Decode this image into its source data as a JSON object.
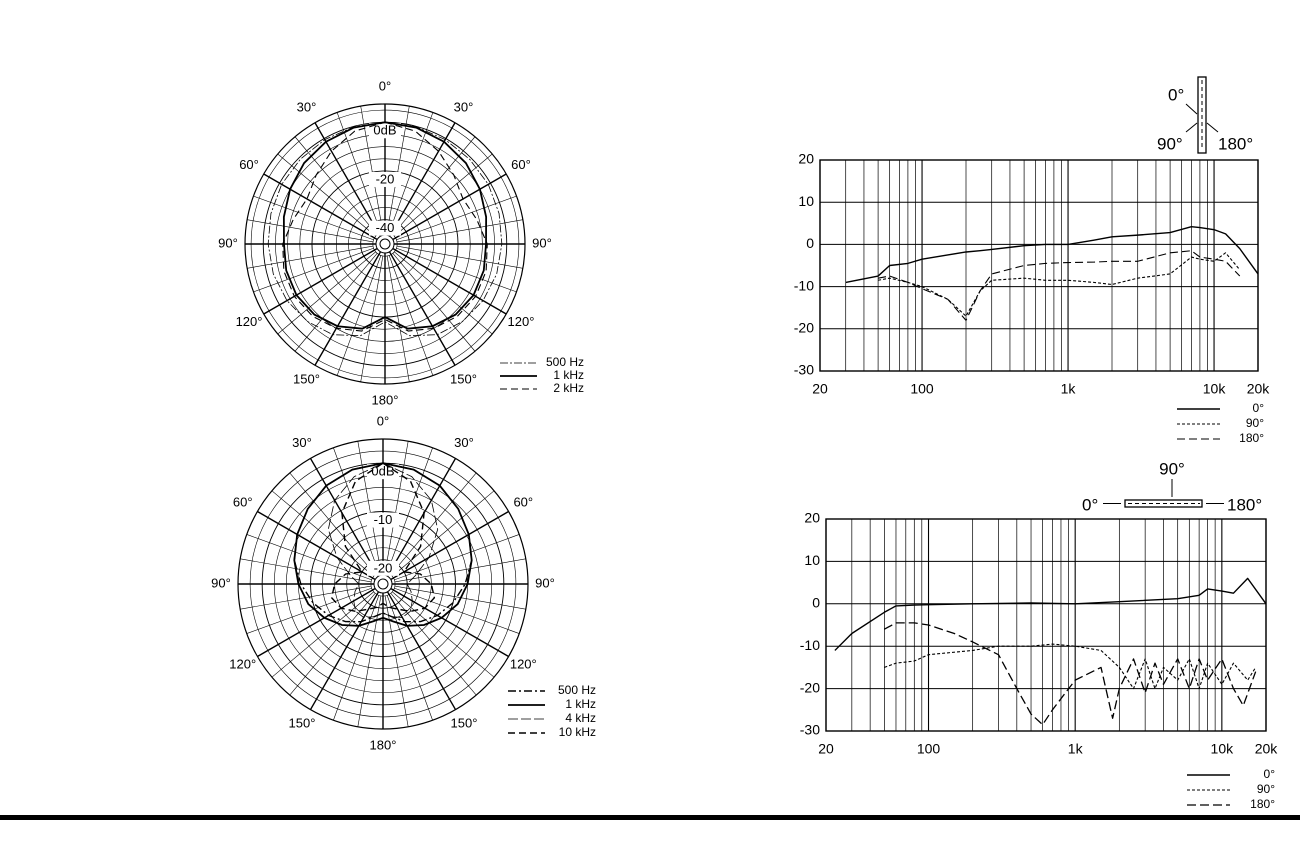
{
  "chart_data": [
    {
      "type": "polar",
      "rlim": [
        -50,
        7.5
      ],
      "rticks": [
        {
          "value": 0,
          "label": "0dB"
        },
        -20,
        -40
      ],
      "rgrid": [
        -45,
        -35,
        -30,
        -25,
        -15,
        -10,
        -5,
        5
      ],
      "angle_ticks": [
        {
          "value": 0,
          "label": "0°"
        },
        {
          "value": 30,
          "label": "30°"
        },
        {
          "value": 60,
          "label": "60°"
        },
        {
          "value": 90,
          "label": "90°"
        },
        {
          "value": 120,
          "label": "120°"
        },
        {
          "value": 150,
          "label": "150°"
        },
        {
          "value": 180,
          "label": "180°"
        },
        {
          "value": 210,
          "label": "150°"
        },
        {
          "value": 240,
          "label": "120°"
        },
        {
          "value": 270,
          "label": "90°"
        },
        {
          "value": 300,
          "label": "60°"
        },
        {
          "value": 330,
          "label": "30°"
        }
      ],
      "agrid": [
        10,
        20,
        40,
        50,
        70,
        80,
        100,
        110,
        130,
        140,
        160,
        170,
        190,
        200,
        220,
        230,
        250,
        260,
        280,
        290,
        310,
        320,
        340,
        350
      ],
      "angles": [
        0,
        15,
        30,
        45,
        60,
        75,
        90,
        105,
        120,
        135,
        150,
        165,
        180,
        195,
        210,
        225,
        240,
        255,
        270,
        285,
        300,
        315,
        330,
        345
      ],
      "series": [
        {
          "name": "500 Hz",
          "color": "#000",
          "dash": "8 2 2 2",
          "width": 0.8,
          "values": [
            0,
            -0.2,
            -0.5,
            -0.8,
            -1,
            -1.5,
            -2,
            -2.5,
            -3.5,
            -5,
            -7,
            -11,
            -18,
            -11,
            -7,
            -5,
            -3.5,
            -2.5,
            -2,
            -1.5,
            -1,
            -0.8,
            -0.5,
            -0.2
          ]
        },
        {
          "name": "1 kHz",
          "color": "#000",
          "width": 1.8,
          "values": [
            0,
            -0.5,
            -1.5,
            -3,
            -5,
            -7,
            -8.5,
            -8,
            -8,
            -9,
            -11,
            -14,
            -20,
            -14,
            -11,
            -9,
            -8,
            -8,
            -8.5,
            -7,
            -5,
            -3,
            -1.5,
            -0.5
          ]
        },
        {
          "name": "2 kHz",
          "color": "#000",
          "dash": "7 4",
          "width": 1.1,
          "values": [
            0,
            -2,
            -6,
            -10,
            -13,
            -11,
            -8,
            -7,
            -7,
            -8,
            -10,
            -13,
            -19,
            -13,
            -10,
            -8,
            -7,
            -7,
            -8,
            -11,
            -13,
            -10,
            -6,
            -2
          ]
        }
      ]
    },
    {
      "type": "polar",
      "rlim": [
        -25,
        5
      ],
      "rticks": [
        {
          "value": 0,
          "label": "0dB"
        },
        -10,
        -20
      ],
      "rgrid": [
        -22.5,
        -17.5,
        -15,
        -12.5,
        -7.5,
        -5,
        -2.5,
        2.5
      ],
      "angle_ticks": [
        {
          "value": 0,
          "label": "0°"
        },
        {
          "value": 30,
          "label": "30°"
        },
        {
          "value": 60,
          "label": "60°"
        },
        {
          "value": 90,
          "label": "90°"
        },
        {
          "value": 120,
          "label": "120°"
        },
        {
          "value": 150,
          "label": "150°"
        },
        {
          "value": 180,
          "label": "180°"
        },
        {
          "value": 210,
          "label": "150°"
        },
        {
          "value": 240,
          "label": "120°"
        },
        {
          "value": 270,
          "label": "90°"
        },
        {
          "value": 300,
          "label": "60°"
        },
        {
          "value": 330,
          "label": "30°"
        }
      ],
      "agrid": [
        10,
        20,
        40,
        50,
        70,
        80,
        100,
        110,
        130,
        140,
        160,
        170,
        190,
        200,
        220,
        230,
        250,
        260,
        280,
        290,
        310,
        320,
        340,
        350
      ],
      "angles": [
        0,
        15,
        30,
        45,
        60,
        75,
        90,
        105,
        120,
        135,
        150,
        165,
        180,
        195,
        210,
        225,
        240,
        255,
        270,
        285,
        300,
        315,
        330,
        345
      ],
      "series": [
        {
          "name": "500 Hz",
          "color": "#000",
          "dash": "8 3 2 3",
          "width": 1.4,
          "values": [
            0,
            -0.5,
            -1.5,
            -3,
            -4.5,
            -6,
            -8,
            -10,
            -12,
            -14,
            -16,
            -18,
            -19,
            -18,
            -16,
            -14,
            -12,
            -10,
            -8,
            -6,
            -4.5,
            -3,
            -1.5,
            -0.5
          ]
        },
        {
          "name": "1 kHz",
          "color": "#000",
          "width": 1.8,
          "values": [
            0,
            -0.5,
            -1.5,
            -3,
            -4.5,
            -6,
            -7.5,
            -9,
            -11,
            -13,
            -15,
            -17,
            -18,
            -17,
            -15,
            -13,
            -11,
            -9,
            -7.5,
            -6,
            -4.5,
            -3,
            -1.5,
            -0.5
          ]
        },
        {
          "name": "4 kHz",
          "color": "#000",
          "dash": "10 3",
          "width": 0.8,
          "values": [
            0,
            -2,
            -5,
            -9,
            -14,
            -18,
            -20,
            -19,
            -18,
            -17,
            -17,
            -18,
            -19,
            -18,
            -17,
            -17,
            -18,
            -19,
            -20,
            -18,
            -14,
            -9,
            -5,
            -2
          ]
        },
        {
          "name": "10 kHz",
          "color": "#000",
          "dash": "7 4",
          "width": 1.4,
          "values": [
            0,
            -3,
            -8,
            -14,
            -20,
            -17,
            -15,
            -14,
            -15,
            -17,
            -19,
            -20,
            -21,
            -20,
            -19,
            -17,
            -15,
            -14,
            -15,
            -17,
            -20,
            -14,
            -8,
            -3
          ]
        }
      ]
    },
    {
      "type": "line",
      "xlog": true,
      "xlim": [
        20,
        20000
      ],
      "ylim": [
        -30,
        20
      ],
      "xticks": [
        20,
        100,
        {
          "value": 1000,
          "label": "1k"
        },
        {
          "value": 10000,
          "label": "10k"
        },
        {
          "value": 20000,
          "label": "20k"
        }
      ],
      "xminor_ticks": [
        30,
        40,
        50,
        60,
        70,
        80,
        90,
        200,
        300,
        400,
        500,
        600,
        700,
        800,
        900,
        2000,
        3000,
        4000,
        5000,
        6000,
        7000,
        8000,
        9000
      ],
      "yticks": [
        -30,
        -20,
        -10,
        0,
        10,
        20
      ],
      "grid": true,
      "annotations": [
        "0°",
        "90°",
        "180°"
      ],
      "series": [
        {
          "name": "0°",
          "color": "#000",
          "width": 1.4,
          "x": [
            30,
            50,
            60,
            80,
            100,
            150,
            200,
            250,
            300,
            500,
            700,
            1000,
            1500,
            2000,
            3000,
            5000,
            7000,
            8000,
            10000,
            12000,
            15000,
            20000
          ],
          "values": [
            -9,
            -7.5,
            -5,
            -4.5,
            -3.5,
            -2.5,
            -1.8,
            -1.5,
            -1.2,
            -0.3,
            0,
            0,
            1,
            1.8,
            2.2,
            2.8,
            4.2,
            4,
            3.5,
            2.5,
            -1,
            -7
          ]
        },
        {
          "name": "90°",
          "color": "#000",
          "dash": "3 2",
          "width": 1.1,
          "x": [
            50,
            60,
            80,
            100,
            150,
            200,
            250,
            300,
            500,
            700,
            1000,
            1500,
            2000,
            3000,
            5000,
            7000,
            8000,
            10000,
            12000,
            15000
          ],
          "values": [
            -8.5,
            -8,
            -9,
            -10,
            -13,
            -17,
            -11,
            -8.5,
            -8,
            -8.5,
            -8.5,
            -9,
            -9.5,
            -8,
            -7,
            -3,
            -3.5,
            -4,
            -2,
            -6
          ]
        },
        {
          "name": "180°",
          "color": "#000",
          "dash": "8 4",
          "width": 1.1,
          "x": [
            50,
            60,
            80,
            100,
            150,
            200,
            250,
            300,
            500,
            700,
            1000,
            1500,
            2000,
            3000,
            5000,
            7000,
            8000,
            10000,
            12000,
            15000
          ],
          "values": [
            -8,
            -7.5,
            -9,
            -10.5,
            -13,
            -18,
            -11,
            -7,
            -5,
            -4.5,
            -4.3,
            -4.2,
            -4,
            -4,
            -2,
            -1.5,
            -3,
            -3.5,
            -4,
            -7.5
          ]
        }
      ]
    },
    {
      "type": "line",
      "xlog": true,
      "xlim": [
        20,
        20000
      ],
      "ylim": [
        -30,
        20
      ],
      "xticks": [
        20,
        100,
        {
          "value": 1000,
          "label": "1k"
        },
        {
          "value": 10000,
          "label": "10k"
        },
        {
          "value": 20000,
          "label": "20k"
        }
      ],
      "xminor_ticks": [
        30,
        40,
        50,
        60,
        70,
        80,
        90,
        200,
        300,
        400,
        500,
        600,
        700,
        800,
        900,
        2000,
        3000,
        4000,
        5000,
        6000,
        7000,
        8000,
        9000
      ],
      "yticks": [
        -30,
        -20,
        -10,
        0,
        10,
        20
      ],
      "grid": true,
      "annotations": [
        "90°",
        "0°",
        "180°"
      ],
      "series": [
        {
          "name": "0°",
          "color": "#000",
          "width": 1.4,
          "x": [
            23,
            30,
            50,
            60,
            80,
            100,
            200,
            500,
            1000,
            2000,
            5000,
            7000,
            8000,
            10000,
            12000,
            15000,
            20000
          ],
          "values": [
            -11,
            -7,
            -2,
            -0.5,
            -0.3,
            -0.2,
            0,
            0.2,
            0,
            0.5,
            1.2,
            2,
            3.5,
            3,
            2.5,
            6,
            0
          ]
        },
        {
          "name": "90°",
          "color": "#000",
          "dash": "3 2",
          "width": 1.1,
          "x": [
            50,
            60,
            80,
            100,
            200,
            300,
            500,
            700,
            1000,
            1500,
            2000,
            2500,
            3000,
            3500,
            4000,
            5000,
            6000,
            7000,
            8000,
            10000,
            12000,
            15000,
            17000
          ],
          "values": [
            -15,
            -14,
            -13.5,
            -12,
            -11,
            -10,
            -10,
            -9.5,
            -10,
            -11,
            -15,
            -20,
            -13,
            -20,
            -15,
            -18,
            -13,
            -20,
            -14,
            -19,
            -14,
            -18,
            -15
          ]
        },
        {
          "name": "180°",
          "color": "#000",
          "dash": "9 4",
          "width": 1.3,
          "x": [
            50,
            60,
            80,
            100,
            150,
            200,
            300,
            400,
            500,
            600,
            700,
            1000,
            1500,
            1800,
            2000,
            2500,
            3000,
            3500,
            4000,
            5000,
            6000,
            7000,
            8000,
            10000,
            12000,
            14000,
            17000
          ],
          "values": [
            -6,
            -4.5,
            -4.5,
            -5,
            -7,
            -9,
            -12,
            -20,
            -26,
            -28.5,
            -25,
            -18,
            -15,
            -27,
            -20,
            -13,
            -21,
            -14,
            -19,
            -13,
            -20,
            -13,
            -18,
            -13,
            -20,
            -24,
            -16
          ]
        }
      ]
    }
  ]
}
